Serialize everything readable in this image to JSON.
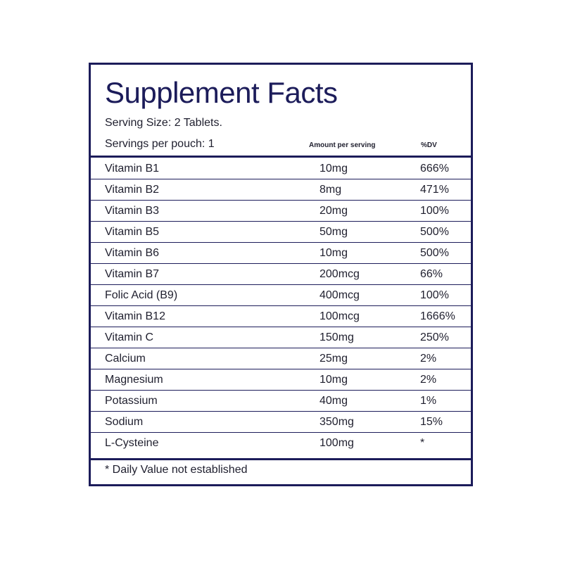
{
  "header": {
    "title": "Supplement Facts",
    "serving_size": "Serving Size: 2 Tablets.",
    "servings_per_pouch": "Servings per pouch: 1"
  },
  "table": {
    "columns": [
      "Amount per serving",
      "%DV"
    ],
    "rows": [
      [
        "Vitamin B1",
        "10mg",
        "666%"
      ],
      [
        "Vitamin B2",
        "8mg",
        "471%"
      ],
      [
        "Vitamin B3",
        "20mg",
        "100%"
      ],
      [
        "Vitamin B5",
        "50mg",
        "500%"
      ],
      [
        "Vitamin B6",
        "10mg",
        "500%"
      ],
      [
        "Vitamin B7",
        "200mcg",
        "66%"
      ],
      [
        "Folic Acid (B9)",
        "400mcg",
        "100%"
      ],
      [
        "Vitamin B12",
        "100mcg",
        "1666%"
      ],
      [
        "Vitamin C",
        "150mg",
        "250%"
      ],
      [
        "Calcium",
        "25mg",
        "2%"
      ],
      [
        "Magnesium",
        "10mg",
        "2%"
      ],
      [
        "Potassium",
        "40mg",
        "1%"
      ],
      [
        "Sodium",
        "350mg",
        "15%"
      ],
      [
        "L-Cysteine",
        "100mg",
        "*"
      ]
    ]
  },
  "footnote": "* Daily Value not established"
}
